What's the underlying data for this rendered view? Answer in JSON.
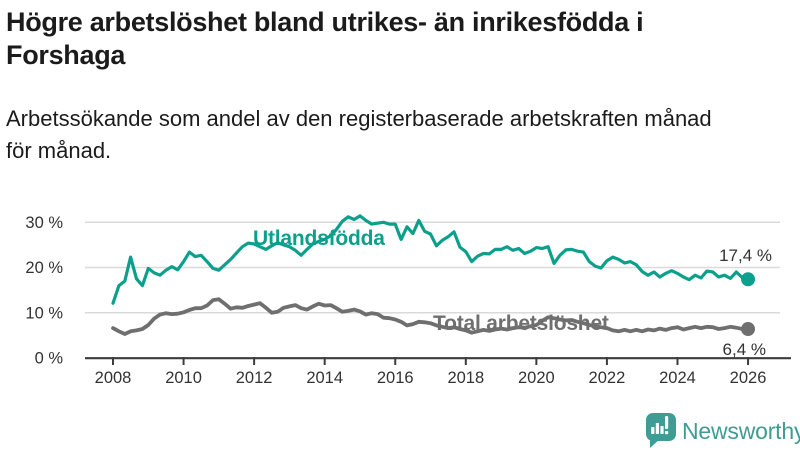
{
  "header": {
    "title_lines": [
      "Högre arbetslöshet bland utrikes- än inrikesfödda i",
      "Forshaga"
    ],
    "subtitle_lines": [
      "Arbetssökande som andel av den registerbaserade arbetskraften månad",
      "för månad."
    ]
  },
  "chart_data": {
    "type": "line",
    "title": "Högre arbetslöshet bland utrikes- än inrikesfödda i Forshaga",
    "subtitle": "Arbetssökande som andel av den registerbaserade arbetskraften månad för månad.",
    "grid": true,
    "legend": "inline-labels",
    "x_axis": {
      "ticks": [
        2008,
        2010,
        2012,
        2014,
        2016,
        2018,
        2020,
        2022,
        2024,
        2026
      ],
      "range": [
        2007.2,
        2027.4
      ]
    },
    "y_axis": {
      "ticks": [
        {
          "value": 0,
          "label": "0 %"
        },
        {
          "value": 10,
          "label": "10 %"
        },
        {
          "value": 20,
          "label": "20 %"
        },
        {
          "value": 30,
          "label": "30 %"
        }
      ],
      "range": [
        0,
        33
      ]
    },
    "x_start": 2008.0,
    "x_step_years": 0.1666667,
    "series": [
      {
        "name": "Utlandsfödda",
        "color": "#0ca08c",
        "line_width": 3.2,
        "end_label": "17,4 %",
        "values": [
          12.1,
          16.0,
          17.0,
          22.3,
          17.5,
          16.0,
          19.8,
          18.8,
          18.3,
          19.4,
          20.2,
          19.5,
          21.3,
          23.4,
          22.4,
          22.7,
          21.3,
          19.8,
          19.4,
          20.6,
          21.8,
          23.2,
          24.6,
          25.4,
          25.2,
          24.6,
          24.0,
          24.8,
          25.5,
          25.0,
          24.6,
          23.8,
          22.7,
          24.0,
          25.2,
          25.8,
          26.2,
          27.0,
          28.4,
          30.2,
          31.2,
          30.6,
          31.4,
          30.4,
          29.6,
          29.8,
          30.0,
          29.6,
          29.6,
          26.2,
          29.0,
          27.5,
          30.4,
          28.0,
          27.4,
          24.8,
          26.0,
          26.8,
          27.9,
          24.5,
          23.5,
          21.3,
          22.5,
          23.1,
          23.0,
          24.0,
          24.0,
          24.6,
          23.8,
          24.2,
          23.1,
          23.6,
          24.4,
          24.2,
          24.6,
          20.9,
          22.7,
          23.9,
          24.0,
          23.6,
          23.4,
          21.3,
          20.3,
          19.9,
          21.5,
          22.3,
          21.8,
          21.0,
          21.3,
          20.6,
          19.1,
          18.3,
          19.0,
          17.9,
          18.7,
          19.3,
          18.7,
          17.9,
          17.3,
          18.3,
          17.7,
          19.2,
          19.0,
          17.9,
          18.3,
          17.6,
          19.0,
          17.8,
          17.4
        ]
      },
      {
        "name": "Total arbetslöshet",
        "color": "#6f6f6f",
        "line_width": 3.8,
        "end_label": "6,4 %",
        "values": [
          6.6,
          5.9,
          5.3,
          5.9,
          6.1,
          6.4,
          7.3,
          8.7,
          9.6,
          9.9,
          9.7,
          9.8,
          10.1,
          10.6,
          11.0,
          11.0,
          11.6,
          12.8,
          13.0,
          12.0,
          10.9,
          11.2,
          11.1,
          11.5,
          11.8,
          12.1,
          11.1,
          10.0,
          10.2,
          11.1,
          11.4,
          11.7,
          11.0,
          10.7,
          11.4,
          12.0,
          11.6,
          11.7,
          11.0,
          10.2,
          10.4,
          10.7,
          10.3,
          9.6,
          9.9,
          9.7,
          8.9,
          8.8,
          8.5,
          8.0,
          7.2,
          7.5,
          8.0,
          7.9,
          7.7,
          7.2,
          6.9,
          6.6,
          6.8,
          6.4,
          6.1,
          5.6,
          5.9,
          6.2,
          6.0,
          6.3,
          6.5,
          6.3,
          6.6,
          6.8,
          6.7,
          7.0,
          7.3,
          8.2,
          9.0,
          8.8,
          8.5,
          8.3,
          8.4,
          8.0,
          7.7,
          7.3,
          7.0,
          6.8,
          6.6,
          6.1,
          5.9,
          6.2,
          5.9,
          6.2,
          5.9,
          6.3,
          6.1,
          6.5,
          6.2,
          6.6,
          6.8,
          6.3,
          6.6,
          6.9,
          6.6,
          6.9,
          6.8,
          6.4,
          6.6,
          6.9,
          6.7,
          6.4,
          6.4
        ]
      }
    ],
    "style": {
      "grid_color": "#dadada",
      "axis_color": "#3c3c3c",
      "tick_text_color": "#333333",
      "value_label_color": "#333333"
    }
  },
  "footer": {
    "brand": "Newsworthy",
    "brand_color": "#3f9c95"
  }
}
